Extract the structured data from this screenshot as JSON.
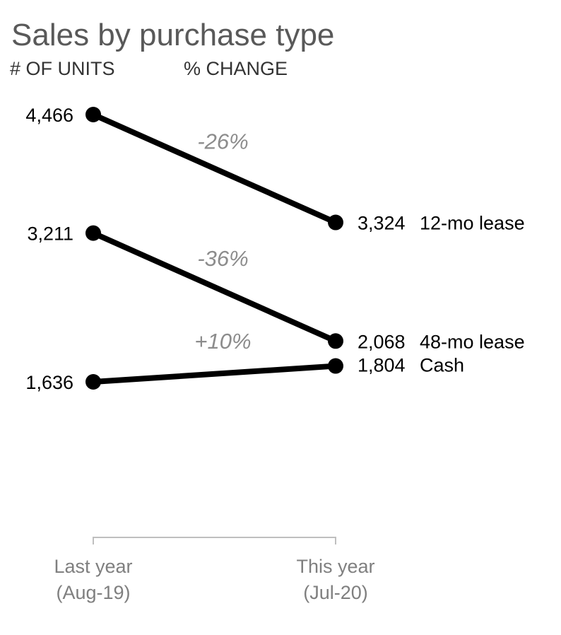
{
  "chart_data": {
    "type": "line",
    "title": "Sales by purchase type",
    "ylabel": "# OF UNITS",
    "secondary_label": "% CHANGE",
    "categories": [
      "Last year\n(Aug-19)",
      "This year\n(Jul-20)"
    ],
    "category_lines": [
      [
        "Last year",
        "(Aug-19)"
      ],
      [
        "This year",
        "(Jul-20)"
      ]
    ],
    "ylim": [
      0,
      4700
    ],
    "grid": false,
    "legend": "none",
    "series": [
      {
        "name": "12-mo lease",
        "values": [
          4466,
          3324
        ],
        "labels": [
          "4,466",
          "3,324"
        ],
        "change": "-26%"
      },
      {
        "name": "48-mo lease",
        "values": [
          3211,
          2068
        ],
        "labels": [
          "3,211",
          "2,068"
        ],
        "change": "-36%"
      },
      {
        "name": "Cash",
        "values": [
          1636,
          1804
        ],
        "labels": [
          "1,636",
          "1,804"
        ],
        "change": "+10%"
      }
    ]
  },
  "colors": {
    "line": "#000000",
    "title": "#595959",
    "change": "#8c8c8c",
    "axis": "#bfbfbf",
    "axis_text": "#7f7f7f"
  }
}
